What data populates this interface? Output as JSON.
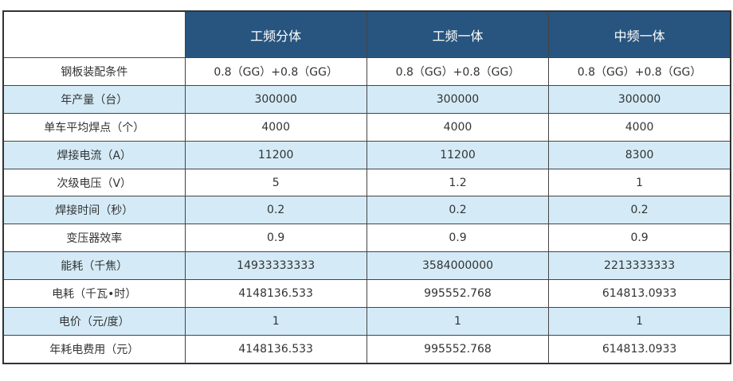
{
  "colors": {
    "header_bg": "#27557f",
    "alt_row_bg": "#d4ebf7"
  },
  "table": {
    "headers": [
      "",
      "工频分体",
      "工频一体",
      "中频一体"
    ],
    "rows": [
      [
        "钢板装配条件",
        "0.8（GG）+0.8（GG）",
        "0.8（GG）+0.8（GG）",
        "0.8（GG）+0.8（GG）"
      ],
      [
        "年产量（台）",
        "300000",
        "300000",
        "300000"
      ],
      [
        "单车平均焊点（个）",
        "4000",
        "4000",
        "4000"
      ],
      [
        "焊接电流（A）",
        "11200",
        "11200",
        "8300"
      ],
      [
        "次级电压（V）",
        "5",
        "1.2",
        "1"
      ],
      [
        "焊接时间（秒）",
        "0.2",
        "0.2",
        "0.2"
      ],
      [
        "变压器效率",
        "0.9",
        "0.9",
        "0.9"
      ],
      [
        "能耗（千焦）",
        "14933333333",
        "3584000000",
        "2213333333"
      ],
      [
        "电耗（千瓦•时）",
        "4148136.533",
        "995552.768",
        "614813.0933"
      ],
      [
        "电价（元/度）",
        "1",
        "1",
        "1"
      ],
      [
        "年耗电费用（元）",
        "4148136.533",
        "995552.768",
        "614813.0933"
      ]
    ]
  }
}
